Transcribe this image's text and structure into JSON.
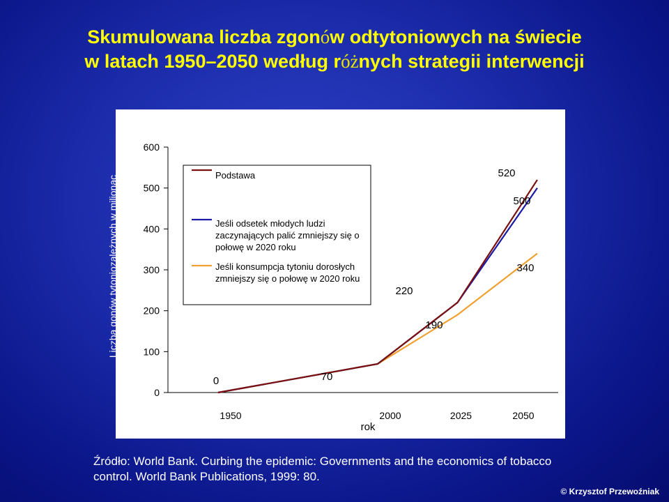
{
  "title": {
    "line1_a": "Skumulowana liczba zgon",
    "line1_b": "ó",
    "line1_c": "w odtytoniowych na świecie",
    "line2_a": "w latach 1950–2050 według r",
    "line2_b": "óż",
    "line2_c": "nych strategii interwencji"
  },
  "chart_data": {
    "type": "line",
    "x": [
      1950,
      2000,
      2025,
      2050
    ],
    "series": [
      {
        "name": "Podstawa",
        "color": "#7a1010",
        "values": [
          0,
          70,
          220,
          520
        ]
      },
      {
        "name": "Jeśli odsetek młodych ludzi zaczynających palić zmniejszy się o połowę w 2020 roku",
        "color": "#1a1aa6",
        "values": [
          0,
          70,
          220,
          500
        ]
      },
      {
        "name": "Jeśli konsumpcja tytoniu dorosłych zmniejszy się o połowę w 2020 roku",
        "color": "#f0a030",
        "values": [
          0,
          70,
          190,
          340
        ]
      }
    ],
    "xlabel": "rok",
    "ylabel": "Liczba gonów tytoniozależnych w milionac",
    "yticks": [
      0,
      100,
      200,
      300,
      400,
      500,
      600
    ],
    "xticks": [
      1950,
      2000,
      2025,
      2050
    ],
    "ylim": [
      0,
      600
    ],
    "xlim": [
      1950,
      2050
    ],
    "data_labels": [
      "0",
      "70",
      "220",
      "190",
      "520",
      "500",
      "340"
    ],
    "legend_position": "top-left",
    "grid": false
  },
  "source": {
    "line1": "Źródło: World Bank. Curbing the epidemic: Governments and the economics of tobacco",
    "line2": "control. World Bank Publications, 1999: 80."
  },
  "copyright": "© Krzysztof Przewoźniak"
}
